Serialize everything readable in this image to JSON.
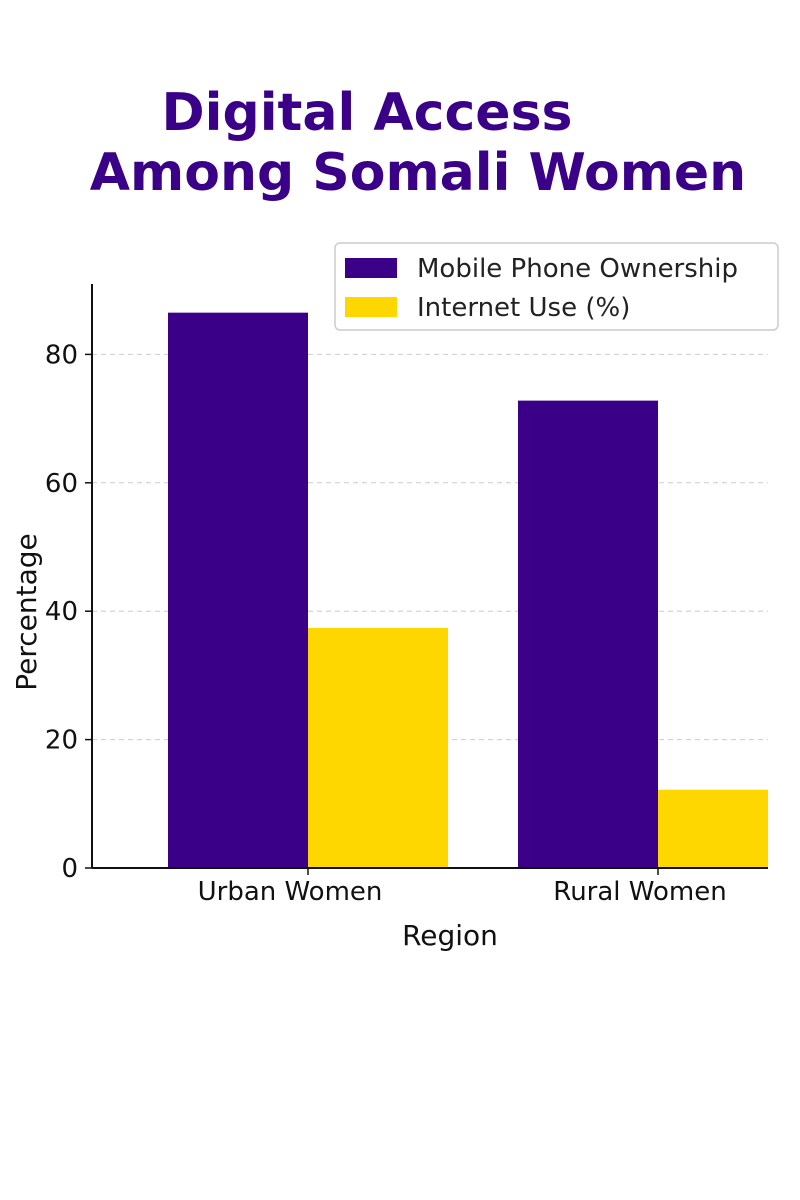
{
  "chart_data": {
    "type": "bar",
    "title_lines": [
      "Digital Access",
      "Among Somali Women"
    ],
    "xlabel": "Region",
    "ylabel": "Percentage",
    "categories": [
      "Urban Women",
      "Rural Women"
    ],
    "series": [
      {
        "name": "Mobile Phone Ownership",
        "values": [
          86.5,
          72.8
        ],
        "color": "#3a0088"
      },
      {
        "name": "Internet Use (%)",
        "values": [
          37.4,
          12.2
        ],
        "color": "#ffd700"
      }
    ],
    "ylim": [
      0,
      90
    ],
    "yticks": [
      0,
      20,
      40,
      60,
      80
    ],
    "grid": true,
    "legend_position": "top-right"
  },
  "colors": {
    "title": "#3a0088",
    "grid": "#cccccc",
    "axis": "#111111"
  }
}
